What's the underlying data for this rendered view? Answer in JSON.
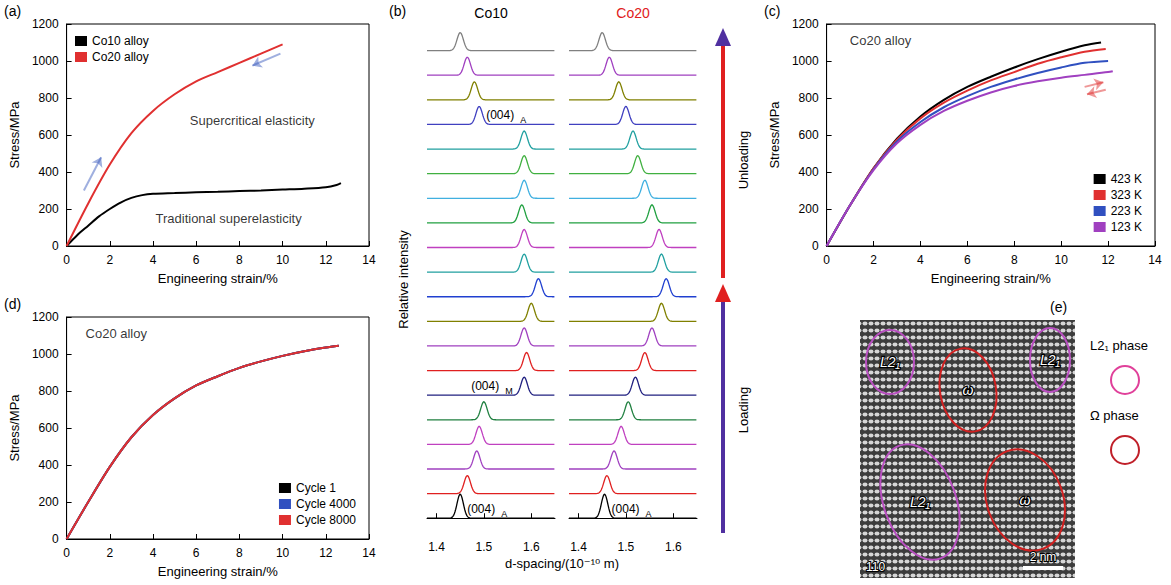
{
  "chart_data": [
    {
      "panel": "(a)",
      "type": "line",
      "xlabel": "Engineering strain/%",
      "ylabel": "Stress/MPa",
      "xlim": [
        0,
        14
      ],
      "xticks": [
        0,
        2,
        4,
        6,
        8,
        10,
        12,
        14
      ],
      "ylim": [
        0,
        1200
      ],
      "yticks": [
        0,
        200,
        400,
        600,
        800,
        1000,
        1200
      ],
      "grid": false,
      "legend": "upper left",
      "series": [
        {
          "name": "Co10 alloy",
          "color": "#000000",
          "x": [
            0,
            0.5,
            1,
            1.5,
            2,
            2.5,
            3,
            3.5,
            4,
            5,
            6,
            7,
            8,
            9,
            10,
            11,
            12,
            12.5,
            12.7
          ],
          "values": [
            0,
            60,
            110,
            160,
            200,
            235,
            260,
            275,
            282,
            286,
            290,
            293,
            297,
            300,
            305,
            310,
            318,
            330,
            340
          ]
        },
        {
          "name": "Co20 alloy",
          "color": "#e03030",
          "x": [
            0,
            1,
            2,
            3,
            4,
            5,
            6,
            7,
            8,
            9,
            10
          ],
          "values": [
            0,
            230,
            440,
            610,
            730,
            820,
            890,
            940,
            990,
            1040,
            1090
          ]
        }
      ],
      "annotations": [
        {
          "text": "Supercritical elasticity",
          "x": 8.6,
          "y": 680
        },
        {
          "text": "Traditional superelasticity",
          "x": 7.5,
          "y": 150
        }
      ]
    },
    {
      "panel": "(b)",
      "type": "stacked_peaks",
      "xlabel": "d-spacing/(10⁻¹⁰ m)",
      "ylabel": "Relative intensity",
      "xlim": [
        1.38,
        1.65
      ],
      "xticks": [
        1.4,
        1.5,
        1.6
      ],
      "columns": [
        {
          "name": "Co10",
          "color": "#000000",
          "peaks": [
            1.45,
            1.465,
            1.485,
            1.49,
            1.5,
            1.585,
            1.59,
            1.585,
            1.6,
            1.615,
            1.585,
            1.585,
            1.58,
            1.585,
            1.585,
            1.585,
            1.49,
            1.48,
            1.465,
            1.45
          ],
          "colors": [
            "#000000",
            "#e02020",
            "#a040c0",
            "#c040c0",
            "#208040",
            "#202080",
            "#e02020",
            "#a040c0",
            "#808000",
            "#2040d0",
            "#20a0a0",
            "#c040c0",
            "#20a040",
            "#40b0e0",
            "#40b040",
            "#20a0a0",
            "#4040c0",
            "#808000",
            "#a040c0",
            "#808080"
          ],
          "peak_labels": [
            {
              "index": 0,
              "text": "(004)",
              "sub": "A"
            },
            {
              "index": 5,
              "text": "(004)",
              "sub": "M"
            },
            {
              "index": 16,
              "text": "(004)",
              "sub": "A"
            }
          ]
        },
        {
          "name": "Co20",
          "color": "#e02020",
          "peaks": [
            1.455,
            1.46,
            1.475,
            1.49,
            1.505,
            1.52,
            1.54,
            1.555,
            1.575,
            1.585,
            1.575,
            1.57,
            1.555,
            1.54,
            1.525,
            1.515,
            1.5,
            1.485,
            1.465,
            1.45
          ],
          "colors": [
            "#000000",
            "#e02020",
            "#a040c0",
            "#c040c0",
            "#208040",
            "#202080",
            "#e02020",
            "#a040c0",
            "#808000",
            "#2040d0",
            "#20a0a0",
            "#c040c0",
            "#20a040",
            "#40b0e0",
            "#40b040",
            "#20a0a0",
            "#4040c0",
            "#808000",
            "#a040c0",
            "#808080"
          ],
          "peak_labels": [
            {
              "index": 0,
              "text": "(004)",
              "sub": "A"
            }
          ]
        }
      ],
      "annotations": [
        {
          "text": "Loading"
        },
        {
          "text": "Unloading"
        }
      ]
    },
    {
      "panel": "(c)",
      "type": "line",
      "xlabel": "Engineering strain/%",
      "ylabel": "Stress/MPa",
      "xlim": [
        0,
        14
      ],
      "xticks": [
        0,
        2,
        4,
        6,
        8,
        10,
        12,
        14
      ],
      "ylim": [
        0,
        1200
      ],
      "yticks": [
        0,
        200,
        400,
        600,
        800,
        1000,
        1200
      ],
      "grid": false,
      "legend": "lower right",
      "series": [
        {
          "name": "423 K",
          "color": "#000000",
          "x": [
            0,
            1,
            2,
            3,
            4,
            5,
            6,
            7,
            8,
            9,
            10,
            11,
            11.7
          ],
          "values": [
            0,
            220,
            420,
            580,
            700,
            790,
            860,
            915,
            965,
            1010,
            1050,
            1085,
            1100
          ]
        },
        {
          "name": "323 K",
          "color": "#e03030",
          "x": [
            0,
            1,
            2,
            3,
            4,
            5,
            6,
            7,
            8,
            9,
            10,
            11,
            11.9
          ],
          "values": [
            0,
            220,
            420,
            575,
            690,
            775,
            840,
            895,
            940,
            985,
            1020,
            1050,
            1065
          ]
        },
        {
          "name": "223 K",
          "color": "#3050c0",
          "x": [
            0,
            1,
            2,
            3,
            4,
            5,
            6,
            7,
            8,
            9,
            10,
            11,
            12
          ],
          "values": [
            0,
            220,
            415,
            565,
            670,
            750,
            810,
            860,
            900,
            935,
            965,
            990,
            1000
          ]
        },
        {
          "name": "123 K",
          "color": "#a040c0",
          "x": [
            0,
            1,
            2,
            3,
            4,
            5,
            6,
            7,
            8,
            9,
            10,
            11,
            12,
            12.2
          ],
          "values": [
            0,
            220,
            410,
            555,
            655,
            730,
            785,
            830,
            865,
            890,
            910,
            925,
            940,
            945
          ]
        }
      ],
      "annotations": [
        {
          "text": "Co20 alloy",
          "x": 2.3,
          "y": 1110
        }
      ]
    },
    {
      "panel": "(d)",
      "type": "line",
      "xlabel": "Engineering strain/%",
      "ylabel": "Stress/MPa",
      "xlim": [
        0,
        14
      ],
      "xticks": [
        0,
        2,
        4,
        6,
        8,
        10,
        12,
        14
      ],
      "ylim": [
        0,
        1200
      ],
      "yticks": [
        0,
        200,
        400,
        600,
        800,
        1000,
        1200
      ],
      "grid": false,
      "legend": "lower right",
      "series": [
        {
          "name": "Cycle 1",
          "color": "#000000",
          "x": [
            0,
            1,
            2,
            3,
            4,
            5,
            6,
            7,
            8,
            9,
            10,
            11,
            12,
            12.6
          ],
          "values": [
            0,
            200,
            390,
            550,
            670,
            760,
            830,
            880,
            925,
            960,
            990,
            1015,
            1035,
            1045
          ]
        },
        {
          "name": "Cycle 4000",
          "color": "#3050c0",
          "x": [
            0,
            1,
            2,
            3,
            4,
            5,
            6,
            7,
            8,
            9,
            10,
            11,
            12,
            12.6
          ],
          "values": [
            0,
            200,
            390,
            550,
            670,
            760,
            830,
            880,
            925,
            960,
            990,
            1015,
            1035,
            1045
          ]
        },
        {
          "name": "Cycle 8000",
          "color": "#e03030",
          "x": [
            0,
            1,
            2,
            3,
            4,
            5,
            6,
            7,
            8,
            9,
            10,
            11,
            12,
            12.6
          ],
          "values": [
            0,
            200,
            390,
            550,
            670,
            760,
            830,
            880,
            925,
            960,
            990,
            1015,
            1035,
            1045
          ]
        }
      ],
      "annotations": [
        {
          "text": "Co20 alloy",
          "x": 2.3,
          "y": 1110
        }
      ]
    }
  ],
  "image_panel": {
    "panel": "(e)",
    "zone_axis": "110",
    "scale_bar": "2 nm",
    "regions": [
      {
        "label": "L2₁",
        "color": "#b84fc0"
      },
      {
        "label": "ω",
        "color": "#d02020"
      },
      {
        "label": "L2₁",
        "color": "#b84fc0"
      },
      {
        "label": "L2₁",
        "color": "#b84fc0"
      },
      {
        "label": "ω",
        "color": "#d02020"
      }
    ],
    "legend": [
      {
        "text": "L2₁ phase",
        "color": "#e0409a"
      },
      {
        "text": "Ω phase",
        "color": "#c0202a"
      }
    ]
  }
}
